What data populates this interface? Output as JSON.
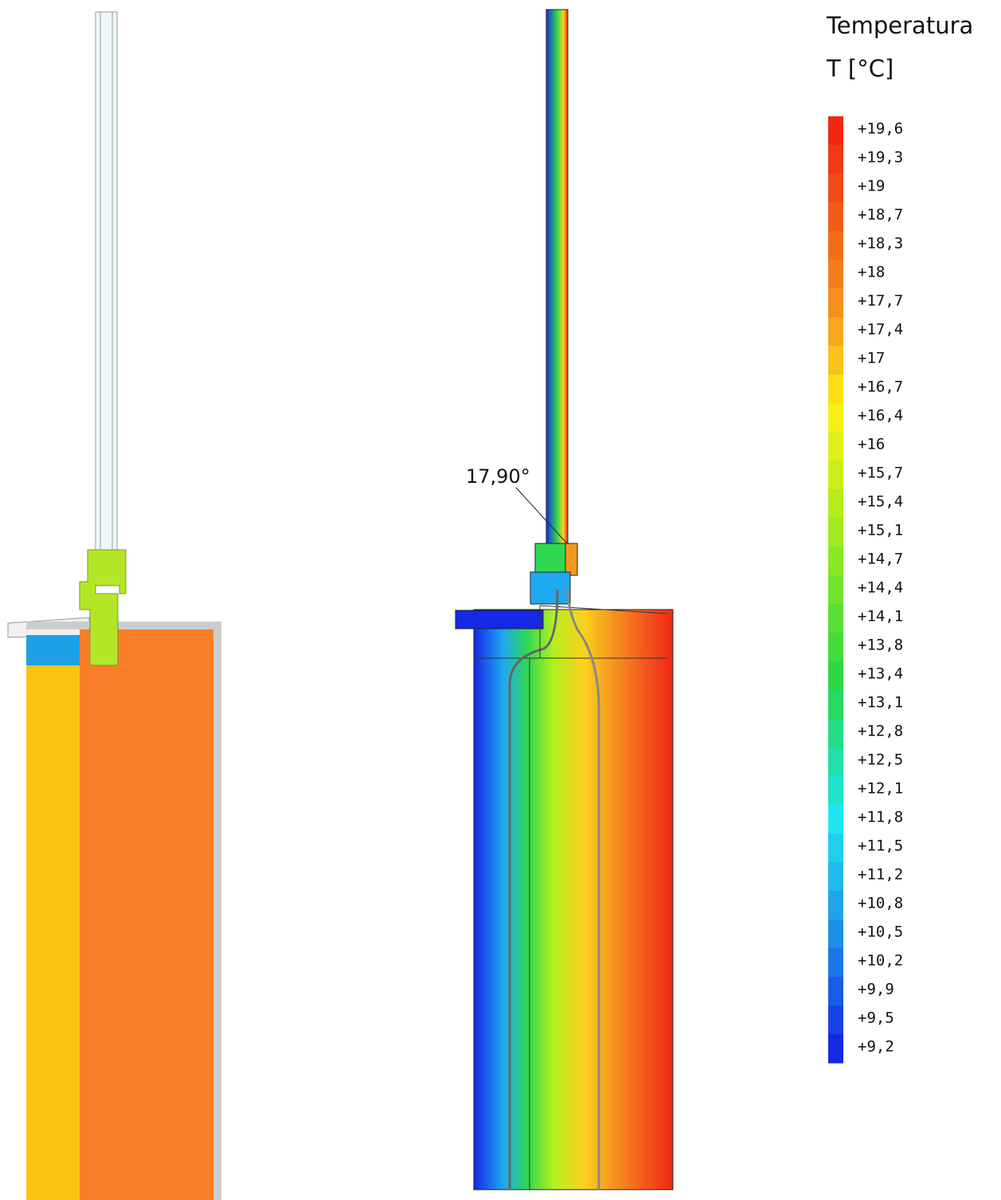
{
  "legend": {
    "title": "Temperatura",
    "unit": "T [°C]",
    "labels": [
      "+19,6",
      "+19,3",
      "+19",
      "+18,7",
      "+18,3",
      "+18",
      "+17,7",
      "+17,4",
      "+17",
      "+16,7",
      "+16,4",
      "+16",
      "+15,7",
      "+15,4",
      "+15,1",
      "+14,7",
      "+14,4",
      "+14,1",
      "+13,8",
      "+13,4",
      "+13,1",
      "+12,8",
      "+12,5",
      "+12,1",
      "+11,8",
      "+11,5",
      "+11,2",
      "+10,8",
      "+10,5",
      "+10,2",
      "+9,9",
      "+9,5",
      "+9,2"
    ]
  },
  "annotation": "17,90°"
}
